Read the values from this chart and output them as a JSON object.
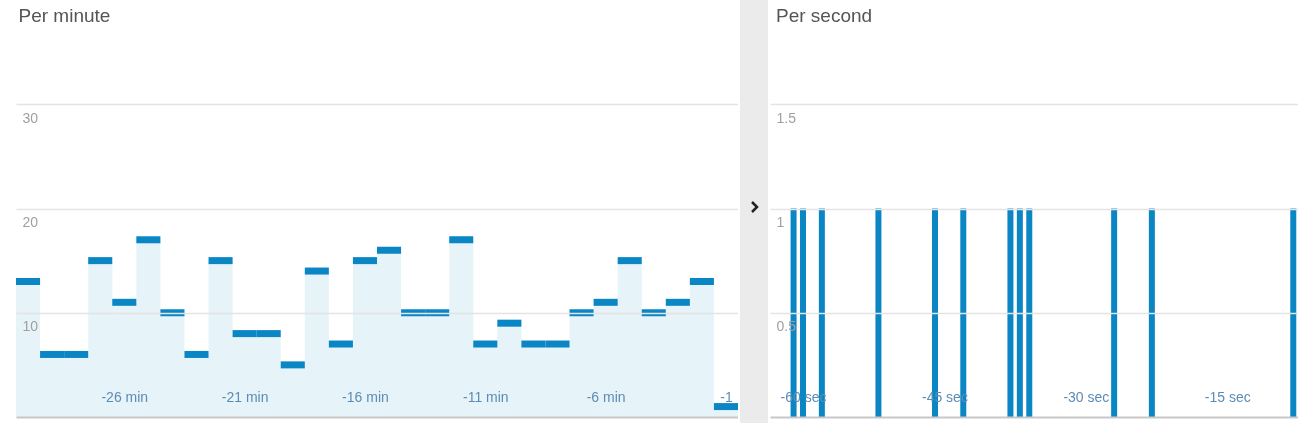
{
  "chart_data": [
    {
      "type": "histogram",
      "title": "Per minute",
      "color": "#0a86c5",
      "bins": [
        -30.5,
        -29.5,
        -28.5,
        -27.5,
        -26.5,
        -25.5,
        -24.5,
        -23.5,
        -22.5,
        -21.5,
        -20.5,
        -19.5,
        -18.5,
        -17.5,
        -16.5,
        -15.5,
        -14.5,
        -13.5,
        -12.5,
        -11.5,
        -10.5,
        -9.5,
        -8.5,
        -7.5,
        -6.5,
        -5.5,
        -4.5,
        -3.5,
        -2.5,
        -1.5,
        -0.5
      ],
      "values": [
        13,
        6,
        6,
        15,
        11,
        17,
        10,
        6,
        15,
        8,
        8,
        5,
        14,
        7,
        15,
        16,
        10,
        10,
        17,
        7,
        9,
        7,
        7,
        10,
        11,
        15,
        10,
        11,
        13,
        1
      ],
      "xlim": [
        -30.5,
        -0.5
      ],
      "xticks": [
        {
          "value": -26,
          "label": "-26 min"
        },
        {
          "value": -21,
          "label": "-21 min"
        },
        {
          "value": -16,
          "label": "-16 min"
        },
        {
          "value": -11,
          "label": "-11 min"
        },
        {
          "value": -6,
          "label": "-6 min"
        },
        {
          "value": -1,
          "label": "-1"
        }
      ],
      "ylim": [
        0,
        40
      ],
      "yticks": [
        10,
        20,
        30
      ],
      "grid": "y"
    },
    {
      "type": "bar",
      "title": "Per second",
      "color": "#0a86c5",
      "x": [
        -61,
        -60,
        -58,
        -52,
        -46,
        -43,
        -38,
        -37,
        -36,
        -27,
        -23,
        -8
      ],
      "values": [
        1,
        1,
        1,
        1,
        1,
        1,
        1,
        1,
        1,
        1,
        1,
        1
      ],
      "xlim": [
        -63.5,
        -7.5
      ],
      "xticks": [
        {
          "value": -60,
          "label": "-60 sec"
        },
        {
          "value": -45,
          "label": "-45 sec"
        },
        {
          "value": -30,
          "label": "-30 sec"
        },
        {
          "value": -15,
          "label": "-15 sec"
        }
      ],
      "ylim": [
        0,
        2
      ],
      "yticks": [
        0.5,
        1,
        1.5
      ],
      "grid": "y"
    }
  ]
}
